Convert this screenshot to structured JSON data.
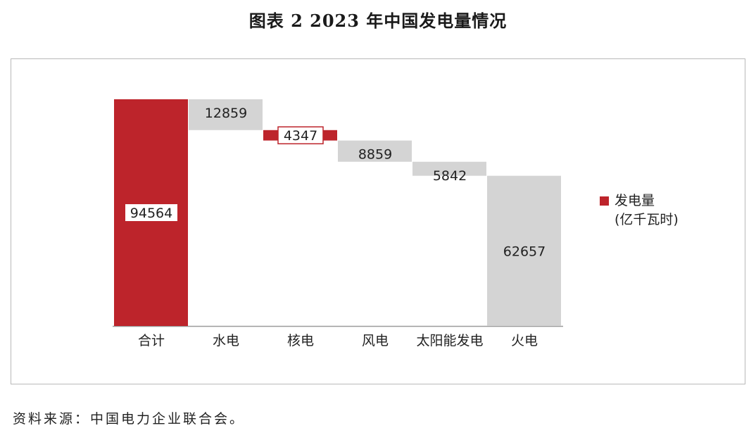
{
  "title": "图表 2  2023 年中国发电量情况",
  "source": "资料来源：中国电力企业联合会。",
  "colors": {
    "total": "#bd242b",
    "increase": "#d4d4d4",
    "nuclear": "#bd242b",
    "axis": "#9a9a9a"
  },
  "legend": {
    "series_name": "发电量",
    "unit": "(亿千瓦时)",
    "position": "right"
  },
  "chart_data": {
    "type": "waterfall",
    "categories": [
      "合计",
      "水电",
      "核电",
      "风电",
      "太阳能发电",
      "火电"
    ],
    "values": [
      94564,
      12859,
      4347,
      8859,
      5842,
      62657
    ],
    "labels": [
      "94564",
      "12859",
      "4347",
      "8859",
      "5842",
      "62657"
    ],
    "bar_kinds": [
      "total",
      "part",
      "part",
      "part",
      "part",
      "part"
    ],
    "series": [
      {
        "name": "发电量"
      }
    ],
    "unit": "亿千瓦时",
    "ylim": [
      0,
      94564
    ],
    "grid": false
  }
}
